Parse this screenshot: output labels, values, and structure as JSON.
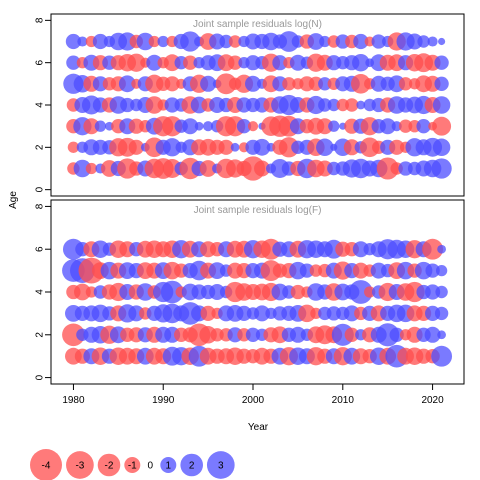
{
  "chart_data": [
    {
      "type": "scatter",
      "subtype": "bubble",
      "title": "Joint sample residuals log(N)",
      "xlabel": "Year",
      "ylabel": "Age",
      "xlim": [
        1977.5,
        2023.5
      ],
      "ylim": [
        -0.3,
        8.3
      ],
      "xticks": [
        1980,
        1990,
        2000,
        2010,
        2020
      ],
      "yticks": [
        0,
        2,
        4,
        6,
        8
      ],
      "x": [
        1980,
        1981,
        1982,
        1983,
        1984,
        1985,
        1986,
        1987,
        1988,
        1989,
        1990,
        1991,
        1992,
        1993,
        1994,
        1995,
        1996,
        1997,
        1998,
        1999,
        2000,
        2001,
        2002,
        2003,
        2004,
        2005,
        2006,
        2007,
        2008,
        2009,
        2010,
        2011,
        2012,
        2013,
        2014,
        2015,
        2016,
        2017,
        2018,
        2019,
        2020,
        2021
      ],
      "ages": [
        1,
        2,
        3,
        4,
        5,
        6,
        7
      ],
      "residuals": [
        [
          -0.6,
          1.2,
          -0.5,
          0.4,
          -1.1,
          0.9,
          -1.6,
          -0.8,
          1.0,
          -1.5,
          -1.7,
          -1.4,
          0.7,
          -1.8,
          0.9,
          -1.1,
          0.4,
          -1.5,
          -1.3,
          -0.9,
          -2.3,
          -1.0,
          0.4,
          1.4,
          0.8,
          -0.9,
          1.5,
          -1.2,
          -1.0,
          0.7,
          0.8,
          1.3,
          1.5,
          1.0,
          1.2,
          -1.9,
          -0.6,
          0.8,
          0.7,
          1.0,
          1.2,
          1.6
        ],
        [
          -0.5,
          0.5,
          1.0,
          0.9,
          0.8,
          -1.3,
          -1.4,
          -0.9,
          0.3,
          -1.5,
          0.9,
          1.3,
          0.5,
          1.0,
          -1.0,
          -1.1,
          -0.9,
          -0.9,
          0.3,
          -0.4,
          0.9,
          1.1,
          0.3,
          -0.9,
          -1.6,
          0.7,
          0.9,
          -1.2,
          1.2,
          0.2,
          1.2,
          -1.0,
          0.6,
          -1.5,
          -0.7,
          0.9,
          -0.9,
          -0.5,
          1.3,
          1.0,
          1.4,
          1.2
        ],
        [
          -0.8,
          1.3,
          -1.0,
          0.5,
          0.3,
          -0.8,
          1.0,
          -0.9,
          -0.6,
          1.1,
          -1.6,
          -1.6,
          0.7,
          1.0,
          0.3,
          0.4,
          0.6,
          -1.6,
          -1.6,
          0.8,
          -0.4,
          0.2,
          -1.5,
          -1.8,
          -1.7,
          1.0,
          -0.8,
          -1.1,
          -1.0,
          0.5,
          0.2,
          -0.9,
          0.9,
          -1.3,
          0.8,
          1.0,
          0.4,
          -0.7,
          -0.6,
          0.8,
          -0.3,
          -1.4
        ],
        [
          -0.7,
          1.0,
          1.4,
          0.9,
          -0.9,
          1.2,
          0.8,
          0.6,
          1.0,
          -1.2,
          -0.5,
          0.9,
          0.7,
          -1.2,
          1.1,
          -0.7,
          1.0,
          0.8,
          -1.0,
          0.9,
          0.8,
          0.9,
          -0.9,
          1.2,
          1.6,
          1.0,
          -0.9,
          1.3,
          0.7,
          0.6,
          -0.6,
          -0.7,
          0.3,
          0.6,
          0.8,
          -0.9,
          1.2,
          0.9,
          1.1,
          1.3,
          -1.0,
          1.2
        ],
        [
          1.6,
          1.2,
          -1.0,
          0.9,
          -0.7,
          -0.9,
          1.1,
          -0.4,
          0.9,
          -1.3,
          -0.8,
          -0.9,
          -0.4,
          0.9,
          -1.3,
          1.0,
          0.3,
          -1.7,
          -0.6,
          -1.3,
          1.0,
          0.4,
          -1.1,
          0.9,
          -0.7,
          -0.5,
          -0.9,
          -0.8,
          0.7,
          -0.6,
          0.9,
          1.0,
          -1.5,
          -0.5,
          1.0,
          0.8,
          1.1,
          -0.7,
          -0.5,
          -1.1,
          -1.0,
          0.8
        ],
        [
          0.8,
          -0.5,
          1.0,
          -0.9,
          0.8,
          -0.9,
          -1.2,
          -1.3,
          -0.4,
          1.0,
          -0.5,
          -1.1,
          0.7,
          -0.8,
          0.5,
          0.9,
          1.1,
          -1.1,
          -0.8,
          0.5,
          0.9,
          0.7,
          -1.3,
          0.9,
          -0.5,
          1.0,
          0.6,
          -1.3,
          -1.0,
          0.9,
          0.7,
          0.9,
          1.2,
          0.3,
          1.1,
          -1.0,
          -1.1,
          0.9,
          -1.2,
          -1.4,
          -1.0,
          0.8
        ],
        [
          0.9,
          0.4,
          -0.5,
          0.9,
          0.5,
          1.2,
          1.3,
          -0.7,
          1.2,
          -0.5,
          0.5,
          -0.5,
          0.9,
          1.6,
          0.4,
          -1.1,
          1.0,
          0.7,
          -0.6,
          0.5,
          1.0,
          0.9,
          1.2,
          0.8,
          1.7,
          0.6,
          -0.8,
          1.1,
          0.5,
          -0.6,
          0.8,
          -0.7,
          0.9,
          -0.4,
          0.8,
          0.5,
          -1.3,
          1.3,
          1.0,
          0.6,
          0.4,
          0.2
        ]
      ]
    },
    {
      "type": "scatter",
      "subtype": "bubble",
      "title": "Joint sample residuals log(F)",
      "xlabel": "Year",
      "ylabel": "Age",
      "xlim": [
        1977.5,
        2023.5
      ],
      "ylim": [
        -0.3,
        8.3
      ],
      "xticks": [
        1980,
        1990,
        2000,
        2010,
        2020
      ],
      "yticks": [
        0,
        2,
        4,
        6,
        8
      ],
      "x": [
        1980,
        1981,
        1982,
        1983,
        1984,
        1985,
        1986,
        1987,
        1988,
        1989,
        1990,
        1991,
        1992,
        1993,
        1994,
        1995,
        1996,
        1997,
        1998,
        1999,
        2000,
        2001,
        2002,
        2003,
        2004,
        2005,
        2006,
        2007,
        2008,
        2009,
        2010,
        2011,
        2012,
        2013,
        2014,
        2015,
        2016,
        2017,
        2018,
        2019,
        2020,
        2021
      ],
      "ages": [
        1,
        2,
        3,
        4,
        5,
        6
      ],
      "residuals": [
        [
          -1.1,
          -0.9,
          1.0,
          -1.2,
          0.9,
          -1.2,
          -1.1,
          -1.0,
          1.1,
          -1.1,
          -1.0,
          1.4,
          1.3,
          -1.2,
          1.7,
          -1.1,
          -0.9,
          -1.0,
          -1.2,
          -0.9,
          -0.8,
          -1.1,
          -0.9,
          1.1,
          -1.3,
          1.2,
          1.0,
          -1.3,
          -0.9,
          1.0,
          -1.3,
          1.1,
          -1.0,
          -0.8,
          1.2,
          -1.1,
          2.0,
          -1.1,
          -1.2,
          -0.9,
          -0.8,
          1.7
        ],
        [
          -2.0,
          0.6,
          1.0,
          1.2,
          -1.3,
          1.1,
          -0.8,
          -0.9,
          0.9,
          -1.0,
          1.0,
          1.0,
          -0.8,
          -0.9,
          -2.0,
          -1.2,
          -0.7,
          -0.7,
          0.9,
          -0.7,
          0.8,
          0.6,
          -0.9,
          -1.1,
          0.8,
          1.0,
          0.6,
          -1.1,
          -1.4,
          -1.1,
          1.9,
          -0.8,
          0.5,
          -0.9,
          1.0,
          2.1,
          0.8,
          -0.5,
          -1.0,
          0.8,
          1.0,
          0.3
        ],
        [
          1.1,
          0.9,
          1.0,
          1.2,
          0.8,
          -1.0,
          1.3,
          1.0,
          -0.6,
          0.9,
          1.3,
          1.5,
          1.0,
          2.0,
          1.0,
          -0.9,
          -0.5,
          1.0,
          1.1,
          0.9,
          0.6,
          1.0,
          0.5,
          0.8,
          0.9,
          1.1,
          -1.2,
          -0.5,
          0.7,
          0.8,
          0.7,
          1.0,
          -0.7,
          0.9,
          -1.0,
          0.9,
          1.2,
          1.2,
          -1.0,
          -0.9,
          0.9,
          0.7
        ],
        [
          -0.8,
          -1.1,
          -0.5,
          0.7,
          -0.9,
          -1.3,
          1.0,
          -0.9,
          1.2,
          -0.7,
          1.6,
          2.0,
          -0.5,
          1.1,
          0.9,
          0.8,
          1.0,
          0.6,
          -1.6,
          -1.2,
          -1.0,
          -1.1,
          -1.3,
          1.1,
          0.7,
          -0.8,
          -0.5,
          1.2,
          0.9,
          -1.2,
          1.1,
          0.9,
          2.2,
          -0.5,
          0.7,
          -1.3,
          1.0,
          -1.2,
          -1.6,
          0.8,
          0.9,
          0.6
        ],
        [
          2.0,
          2.4,
          -2.6,
          -1.1,
          1.2,
          -1.0,
          1.1,
          0.9,
          -1.1,
          -1.0,
          1.1,
          -1.2,
          -0.8,
          0.9,
          1.5,
          -1.0,
          1.1,
          0.6,
          -1.0,
          -0.9,
          0.9,
          1.0,
          -1.7,
          -0.8,
          -0.9,
          1.2,
          0.8,
          -0.6,
          -0.7,
          1.0,
          -1.3,
          0.9,
          -1.0,
          -0.6,
          1.0,
          0.7,
          -1.1,
          1.2,
          -0.8,
          1.2,
          0.8,
          0.5
        ],
        [
          1.7,
          0.8,
          -1.0,
          1.2,
          0.7,
          -1.2,
          -1.0,
          0.8,
          -1.1,
          -1.2,
          -1.0,
          -1.2,
          1.3,
          -1.1,
          1.0,
          -1.0,
          -0.8,
          1.0,
          -1.1,
          -1.1,
          1.3,
          -1.2,
          -1.7,
          0.9,
          1.0,
          -1.1,
          1.3,
          1.2,
          1.0,
          1.4,
          -0.9,
          -0.8,
          1.0,
          0.6,
          1.0,
          1.6,
          1.4,
          1.2,
          -1.3,
          1.0,
          -1.7,
          0.3
        ]
      ]
    }
  ],
  "legend": {
    "values": [
      -4,
      -3,
      -2,
      -1,
      0,
      1,
      2,
      3
    ],
    "labels": [
      "-4",
      "-3",
      "-2",
      "-1",
      "0",
      "1",
      "2",
      "3"
    ]
  },
  "colors": {
    "negative": "#ff4d4d",
    "positive": "#4d4dff",
    "panel_title": "#999999",
    "axis": "#000000"
  }
}
